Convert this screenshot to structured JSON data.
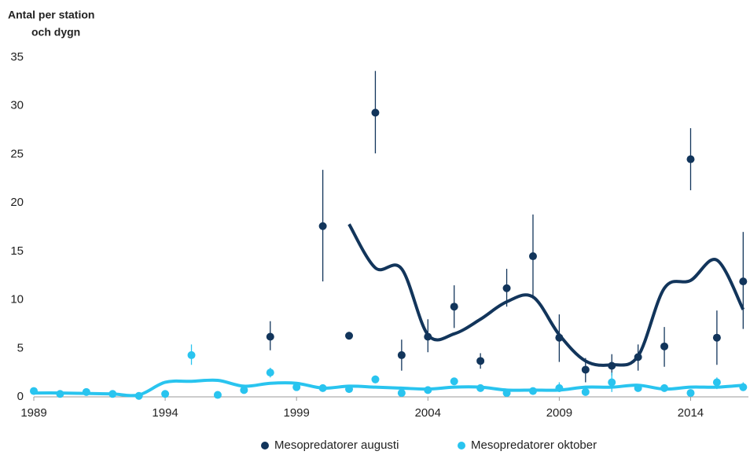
{
  "chart_data": {
    "type": "scatter",
    "y_label_lines": [
      "Antal per station",
      "och dygn"
    ],
    "xlim": [
      1989,
      2016.2
    ],
    "xticks": [
      1989,
      1994,
      1999,
      2004,
      2009,
      2014
    ],
    "ylim": [
      0,
      35
    ],
    "yticks": [
      0,
      5,
      10,
      15,
      20,
      25,
      30,
      35
    ],
    "grid": false,
    "legend": "bottom",
    "series": [
      {
        "name": "Mesopredatorer augusti",
        "color": "#12355b",
        "x": [
          1998,
          2000,
          2001,
          2002,
          2003,
          2004,
          2005,
          2006,
          2007,
          2008,
          2009,
          2010,
          2011,
          2012,
          2013,
          2014,
          2015,
          2016
        ],
        "values": [
          6.2,
          17.6,
          6.3,
          29.3,
          4.3,
          6.2,
          9.3,
          3.7,
          11.2,
          14.5,
          6.1,
          2.8,
          3.2,
          4.1,
          5.2,
          24.5,
          6.1,
          11.9
        ],
        "lower": [
          4.8,
          11.9,
          6.1,
          25.1,
          2.7,
          4.6,
          7.1,
          2.9,
          9.3,
          10.1,
          3.6,
          1.5,
          2.2,
          2.7,
          3.1,
          21.3,
          3.3,
          7.0
        ],
        "upper": [
          7.8,
          23.4,
          6.7,
          33.6,
          5.9,
          8.0,
          11.5,
          4.5,
          13.2,
          18.8,
          8.5,
          4.0,
          4.4,
          5.4,
          7.2,
          27.7,
          8.9,
          17.0
        ],
        "trend_x": [
          2001,
          2002,
          2003,
          2004,
          2005,
          2006,
          2007,
          2008,
          2009,
          2010,
          2011,
          2012,
          2013,
          2014,
          2015,
          2016
        ],
        "trend": [
          17.8,
          13.3,
          13.2,
          6.4,
          6.5,
          8.0,
          9.8,
          10.3,
          6.4,
          3.7,
          3.3,
          4.2,
          11.2,
          12.0,
          14.1,
          9.0
        ]
      },
      {
        "name": "Mesopredatorer oktober",
        "color": "#29c4ef",
        "x": [
          1989,
          1990,
          1991,
          1992,
          1993,
          1994,
          1995,
          1996,
          1997,
          1998,
          1999,
          2000,
          2001,
          2002,
          2003,
          2004,
          2005,
          2006,
          2007,
          2008,
          2009,
          2010,
          2011,
          2012,
          2013,
          2014,
          2015,
          2016
        ],
        "values": [
          0.6,
          0.3,
          0.5,
          0.3,
          0.1,
          0.3,
          4.3,
          0.2,
          0.7,
          2.5,
          1.0,
          0.9,
          0.8,
          1.8,
          0.4,
          0.7,
          1.6,
          0.9,
          0.4,
          0.6,
          0.9,
          0.5,
          1.5,
          0.9,
          0.9,
          0.4,
          1.5,
          1.0
        ],
        "lower": [
          0.5,
          0.2,
          0.4,
          0.2,
          0.05,
          0.2,
          3.3,
          0.1,
          0.5,
          2.0,
          0.8,
          0.7,
          0.6,
          1.4,
          0.3,
          0.5,
          1.3,
          0.7,
          0.3,
          0.5,
          0.5,
          0.3,
          0.5,
          0.6,
          0.7,
          0.3,
          0.8,
          0.6
        ],
        "upper": [
          0.7,
          0.4,
          0.6,
          0.4,
          0.2,
          0.4,
          5.4,
          0.3,
          0.9,
          3.0,
          1.2,
          1.1,
          1.0,
          2.2,
          0.5,
          0.9,
          1.9,
          1.1,
          0.5,
          0.7,
          1.5,
          0.7,
          2.5,
          1.2,
          1.1,
          0.5,
          2.0,
          1.5
        ],
        "trend_x": [
          1989,
          1990,
          1991,
          1992,
          1993,
          1994,
          1995,
          1996,
          1997,
          1998,
          1999,
          2000,
          2001,
          2002,
          2003,
          2004,
          2005,
          2006,
          2007,
          2008,
          2009,
          2010,
          2011,
          2012,
          2013,
          2014,
          2015,
          2016
        ],
        "trend": [
          0.4,
          0.4,
          0.35,
          0.3,
          0.2,
          1.5,
          1.6,
          1.7,
          1.1,
          1.4,
          1.4,
          0.9,
          1.1,
          1.0,
          0.9,
          0.8,
          1.0,
          1.0,
          0.7,
          0.7,
          0.7,
          1.0,
          1.0,
          1.2,
          0.8,
          1.0,
          1.0,
          1.2
        ]
      }
    ]
  }
}
